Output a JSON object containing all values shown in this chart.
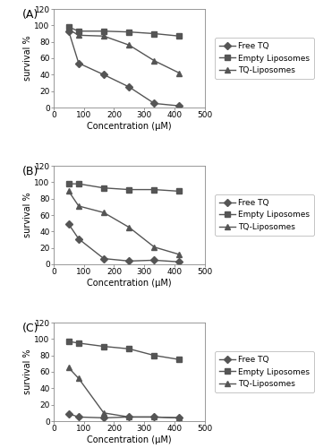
{
  "x": [
    50,
    83,
    166,
    250,
    333,
    416
  ],
  "panel_A": {
    "label": "A",
    "free_TQ": [
      93,
      54,
      40,
      25,
      5,
      2
    ],
    "empty_lipo": [
      98,
      93,
      93,
      92,
      90,
      87
    ],
    "TQ_lipo": [
      95,
      88,
      87,
      76,
      57,
      42
    ]
  },
  "panel_B": {
    "label": "B",
    "free_TQ": [
      49,
      31,
      7,
      4,
      5,
      3
    ],
    "empty_lipo": [
      98,
      98,
      93,
      91,
      91,
      89
    ],
    "TQ_lipo": [
      89,
      71,
      63,
      45,
      21,
      12
    ]
  },
  "panel_C": {
    "label": "C",
    "free_TQ": [
      9,
      5,
      4,
      5,
      5,
      4
    ],
    "empty_lipo": [
      97,
      95,
      91,
      88,
      80,
      75
    ],
    "TQ_lipo": [
      65,
      52,
      10,
      5,
      5,
      4
    ]
  },
  "xlabel": "Concentration (μM)",
  "ylabel": "survival %",
  "ylim": [
    0,
    120
  ],
  "xlim": [
    0,
    500
  ],
  "yticks": [
    0,
    20,
    40,
    60,
    80,
    100,
    120
  ],
  "xticks": [
    0,
    100,
    200,
    300,
    400,
    500
  ],
  "legend_labels": [
    "Free TQ",
    "Empty Liposomes",
    "TQ-Liposomes"
  ],
  "line_color": "#555555",
  "marker_free": "D",
  "marker_empty": "s",
  "marker_TQ": "^",
  "markersize": 4,
  "linewidth": 1.0,
  "fontsize_label": 7,
  "fontsize_tick": 6.5,
  "fontsize_legend": 6.5,
  "fontsize_panel": 9
}
